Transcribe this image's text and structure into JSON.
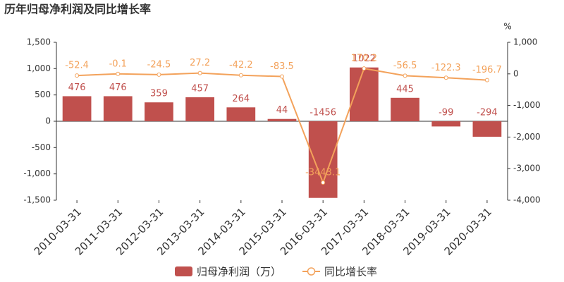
{
  "chart_data": {
    "type": "bar",
    "title": "历年归母净利润及同比增长率",
    "categories": [
      "2010-03-31",
      "2011-03-31",
      "2012-03-31",
      "2013-03-31",
      "2014-03-31",
      "2015-03-31",
      "2016-03-31",
      "2017-03-31",
      "2018-03-31",
      "2019-03-31",
      "2020-03-31"
    ],
    "series": [
      {
        "name": "归母净利润（万）",
        "type": "bar",
        "color": "#c0504d",
        "values": [
          476,
          476,
          359,
          457,
          264,
          44,
          -1456,
          1022,
          445,
          -99,
          -294
        ]
      },
      {
        "name": "同比增长率",
        "type": "line",
        "axis": "y2",
        "color": "#f3a25b",
        "values": [
          -52.4,
          -0.1,
          -24.5,
          27.2,
          -42.2,
          -83.5,
          -3443.1,
          170.2,
          -56.5,
          -122.3,
          -196.7
        ]
      }
    ],
    "ylim": [
      -1500,
      1500
    ],
    "yticks": [
      {
        "value": -1500,
        "label": "-1,500"
      },
      {
        "value": -1000,
        "label": "-1,000"
      },
      -500,
      0,
      500,
      {
        "value": 1000,
        "label": "1,000"
      },
      {
        "value": 1500,
        "label": "1,500"
      }
    ],
    "y2lim": [
      -4000,
      1000
    ],
    "y2ticks": [
      {
        "value": -4000,
        "label": "-4,000"
      },
      {
        "value": -3000,
        "label": "-3,000"
      },
      {
        "value": -2000,
        "label": "-2,000"
      },
      {
        "value": -1000,
        "label": "-1,000"
      },
      0,
      {
        "value": 1000,
        "label": "1,000"
      }
    ],
    "y2label": "%",
    "grid": false
  }
}
